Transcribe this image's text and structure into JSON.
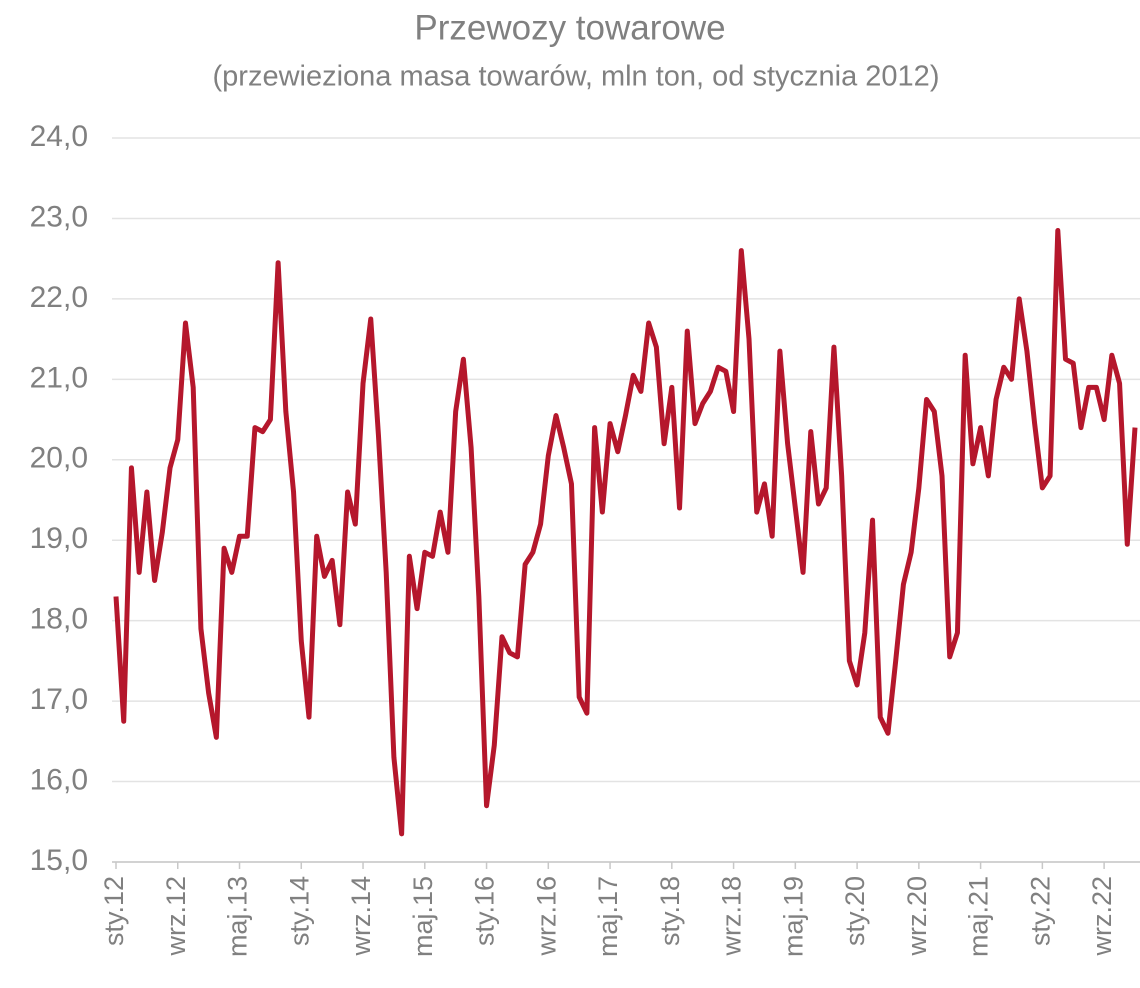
{
  "chart_data": {
    "type": "line",
    "title": "Przewozy towarowe",
    "subtitle": "(przewieziona masa towarów, mln ton, od stycznia 2012)",
    "categories": [
      "sty.12",
      null,
      null,
      null,
      null,
      null,
      null,
      null,
      "wrz.12",
      null,
      null,
      null,
      null,
      null,
      null,
      null,
      "maj.13",
      null,
      null,
      null,
      null,
      null,
      null,
      null,
      "sty.14",
      null,
      null,
      null,
      null,
      null,
      null,
      null,
      "wrz.14",
      null,
      null,
      null,
      null,
      null,
      null,
      null,
      "maj.15",
      null,
      null,
      null,
      null,
      null,
      null,
      null,
      "sty.16",
      null,
      null,
      null,
      null,
      null,
      null,
      null,
      "wrz.16",
      null,
      null,
      null,
      null,
      null,
      null,
      null,
      "maj.17",
      null,
      null,
      null,
      null,
      null,
      null,
      null,
      "sty.18",
      null,
      null,
      null,
      null,
      null,
      null,
      null,
      "wrz.18",
      null,
      null,
      null,
      null,
      null,
      null,
      null,
      "maj.19",
      null,
      null,
      null,
      null,
      null,
      null,
      null,
      "sty.20",
      null,
      null,
      null,
      null,
      null,
      null,
      null,
      "wrz.20",
      null,
      null,
      null,
      null,
      null,
      null,
      null,
      "maj.21",
      null,
      null,
      null,
      null,
      null,
      null,
      null,
      "sty.22",
      null,
      null,
      null,
      null,
      null,
      null,
      null,
      "wrz.22",
      null,
      null,
      null,
      null
    ],
    "series": [
      {
        "name": "Przewozy towarowe",
        "color": "#b5172c",
        "values": [
          18.3,
          16.75,
          19.9,
          18.6,
          19.6,
          18.5,
          19.1,
          19.9,
          20.25,
          21.7,
          20.9,
          17.9,
          17.1,
          16.55,
          18.9,
          18.6,
          19.05,
          19.05,
          20.4,
          20.35,
          20.5,
          22.45,
          20.6,
          19.6,
          17.75,
          16.8,
          19.05,
          18.55,
          18.75,
          17.95,
          19.6,
          19.2,
          20.95,
          21.75,
          20.3,
          18.6,
          16.3,
          15.35,
          18.8,
          18.15,
          18.85,
          18.8,
          19.35,
          18.85,
          20.6,
          21.25,
          20.15,
          18.3,
          15.7,
          16.45,
          17.8,
          17.6,
          17.55,
          18.7,
          18.85,
          19.2,
          20.05,
          20.55,
          20.15,
          19.7,
          17.05,
          16.85,
          20.4,
          19.35,
          20.45,
          20.1,
          20.55,
          21.05,
          20.85,
          21.7,
          21.4,
          20.2,
          20.9,
          19.4,
          21.6,
          20.45,
          20.7,
          20.85,
          21.15,
          21.1,
          20.6,
          22.6,
          21.5,
          19.35,
          19.7,
          19.05,
          21.35,
          20.2,
          19.4,
          18.6,
          20.35,
          19.45,
          19.65,
          21.4,
          19.8,
          17.5,
          17.2,
          17.85,
          19.25,
          16.8,
          16.6,
          17.5,
          18.45,
          18.85,
          19.65,
          20.75,
          20.6,
          19.8,
          17.55,
          17.85,
          21.3,
          19.95,
          20.4,
          19.8,
          20.75,
          21.15,
          21.0,
          22.0,
          21.35,
          20.45,
          19.65,
          19.8,
          22.85,
          21.25,
          21.2,
          20.4,
          20.9,
          20.9,
          20.5,
          21.3,
          20.95,
          18.95,
          20.4
        ]
      }
    ],
    "ylim": [
      15,
      24
    ],
    "yticks": [
      {
        "value": 15,
        "label": "15,0"
      },
      {
        "value": 16,
        "label": "16,0"
      },
      {
        "value": 17,
        "label": "17,0"
      },
      {
        "value": 18,
        "label": "18,0"
      },
      {
        "value": 19,
        "label": "19,0"
      },
      {
        "value": 20,
        "label": "20,0"
      },
      {
        "value": 21,
        "label": "21,0"
      },
      {
        "value": 22,
        "label": "22,0"
      },
      {
        "value": 23,
        "label": "23,0"
      },
      {
        "value": 24,
        "label": "24,0"
      }
    ],
    "grid": true
  }
}
